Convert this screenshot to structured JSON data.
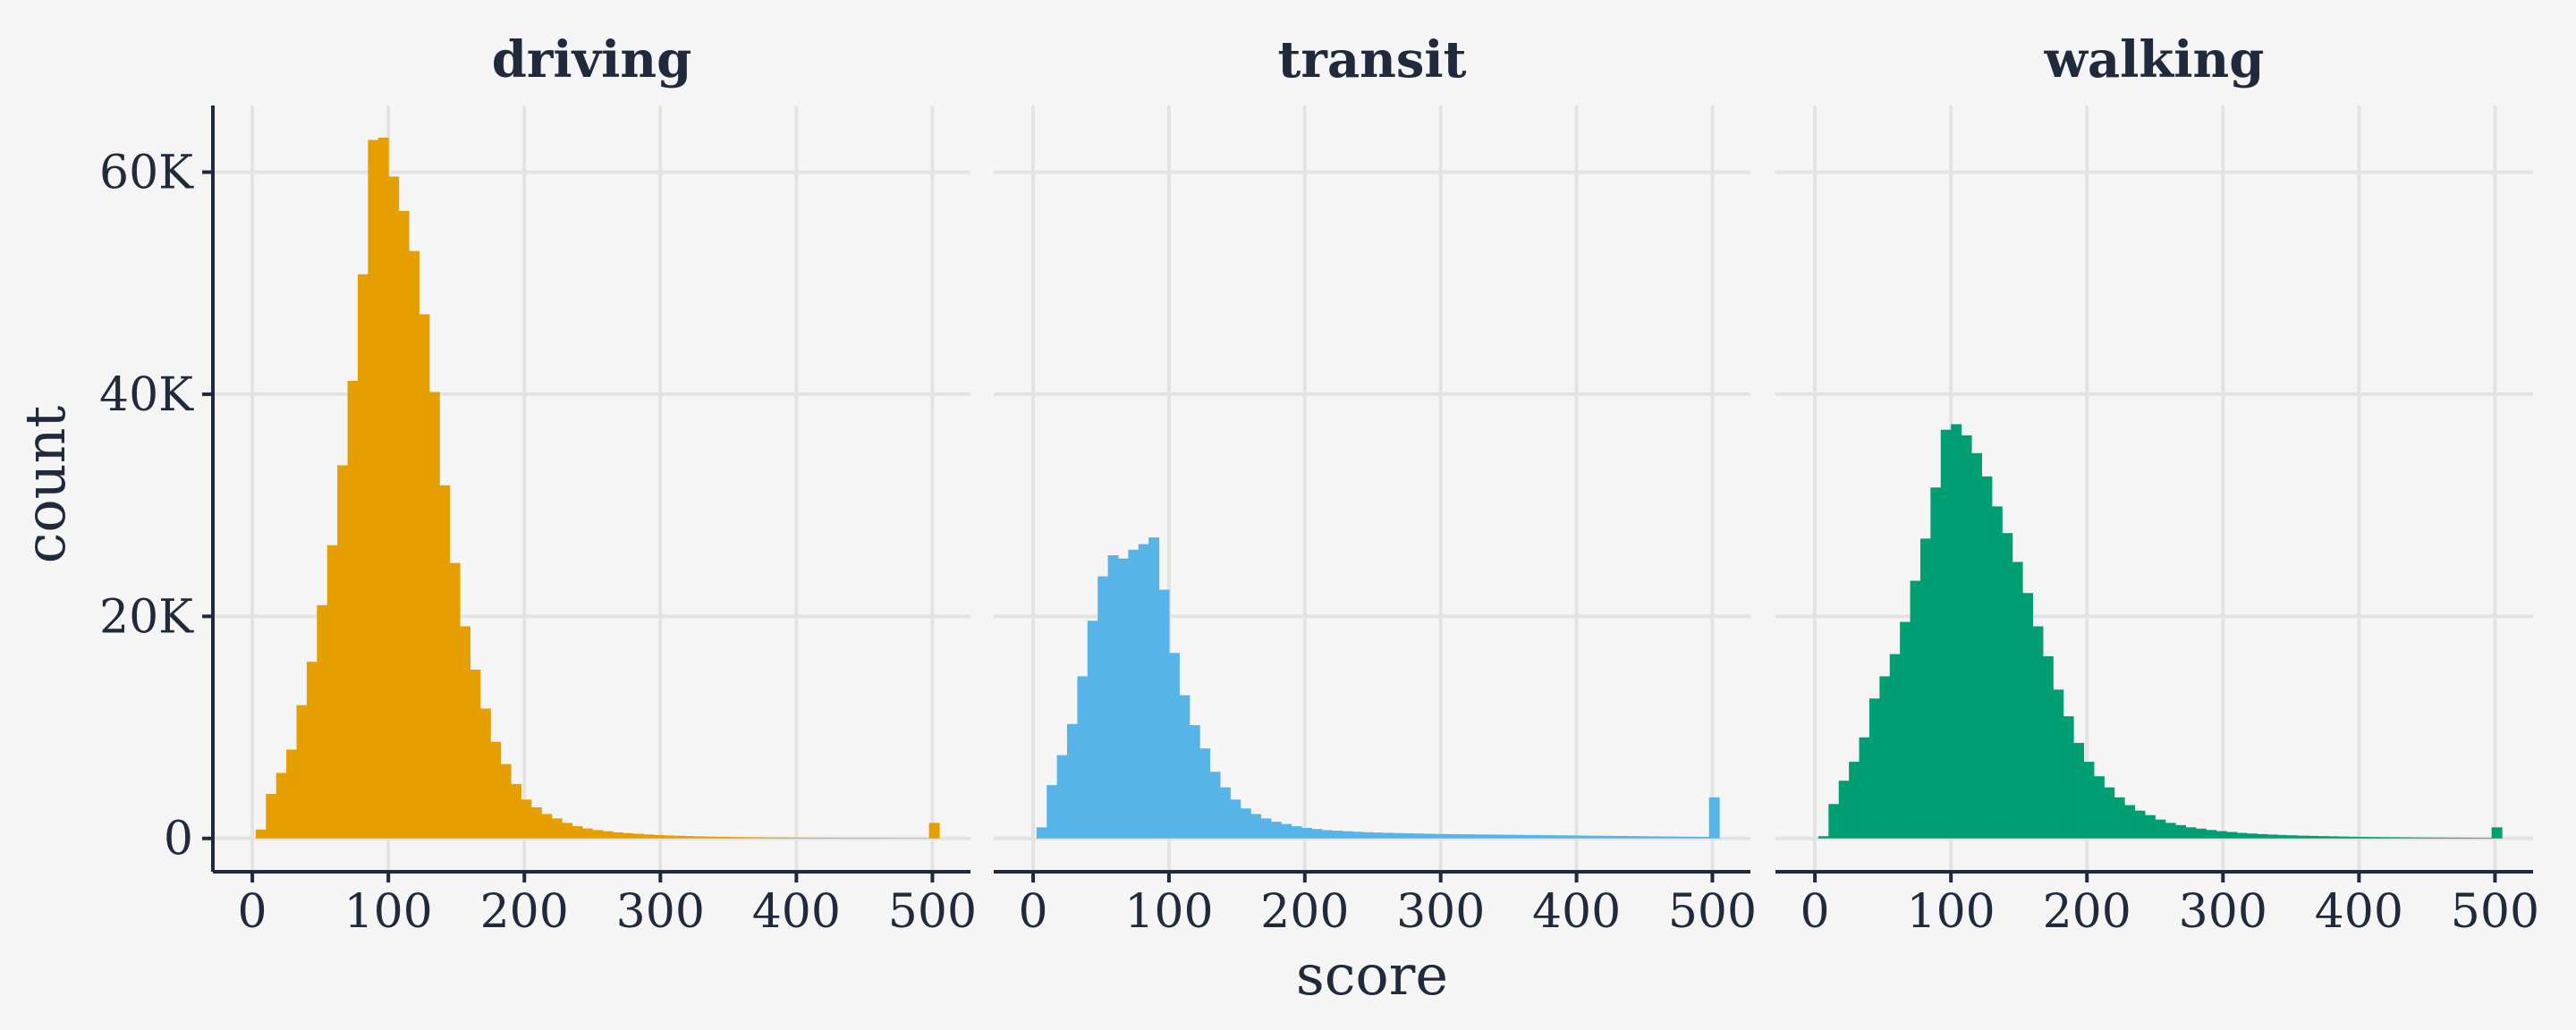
{
  "chart_data": {
    "type": "bar",
    "subtype": "faceted-histogram",
    "xlabel": "score",
    "ylabel": "count",
    "xlim": [
      -29,
      528
    ],
    "ylim": [
      -3000,
      66000
    ],
    "x_ticks": [
      0,
      100,
      200,
      300,
      400,
      500
    ],
    "x_tick_labels": [
      "0",
      "100",
      "200",
      "300",
      "400",
      "500"
    ],
    "y_ticks": [
      0,
      20000,
      40000,
      60000
    ],
    "y_tick_labels": [
      "0",
      "20K",
      "40K",
      "60K"
    ],
    "grid": true,
    "legend": "none",
    "bin_width": 7.5,
    "facets": [
      {
        "name": "driving",
        "color": "#E69F00",
        "bin_starts": [
          2.5,
          10,
          17.5,
          25,
          32.5,
          40,
          47.5,
          55,
          62.5,
          70,
          77.5,
          85,
          92.5,
          100,
          107.5,
          115,
          122.5,
          130,
          137.5,
          145,
          152.5,
          160,
          167.5,
          175,
          182.5,
          190,
          197.5,
          205,
          212.5,
          220,
          227.5,
          235,
          242.5,
          250,
          257.5,
          265,
          272.5,
          280,
          287.5,
          295,
          302.5,
          310,
          317.5,
          325,
          332.5,
          340,
          347.5,
          355,
          362.5,
          370,
          377.5,
          385,
          392.5,
          400,
          407.5,
          415,
          422.5,
          430,
          437.5,
          445,
          452.5,
          460,
          467.5,
          475,
          482.5,
          490,
          497.5
        ],
        "counts": [
          800,
          4000,
          5900,
          8000,
          12000,
          15900,
          21000,
          26400,
          33600,
          41200,
          50800,
          62900,
          63100,
          59600,
          56500,
          52900,
          47200,
          40200,
          31800,
          24800,
          19100,
          15200,
          11700,
          8700,
          6700,
          4900,
          3500,
          2800,
          2200,
          1800,
          1400,
          1100,
          900,
          750,
          650,
          550,
          480,
          420,
          360,
          310,
          270,
          240,
          210,
          190,
          170,
          150,
          135,
          120,
          110,
          100,
          90,
          85,
          80,
          75,
          70,
          65,
          60,
          55,
          50,
          50,
          45,
          45,
          40,
          40,
          40,
          40,
          1400
        ]
      },
      {
        "name": "transit",
        "color": "#56B4E9",
        "bin_starts": [
          2.5,
          10,
          17.5,
          25,
          32.5,
          40,
          47.5,
          55,
          62.5,
          70,
          77.5,
          85,
          92.5,
          100,
          107.5,
          115,
          122.5,
          130,
          137.5,
          145,
          152.5,
          160,
          167.5,
          175,
          182.5,
          190,
          197.5,
          205,
          212.5,
          220,
          227.5,
          235,
          242.5,
          250,
          257.5,
          265,
          272.5,
          280,
          287.5,
          295,
          302.5,
          310,
          317.5,
          325,
          332.5,
          340,
          347.5,
          355,
          362.5,
          370,
          377.5,
          385,
          392.5,
          400,
          407.5,
          415,
          422.5,
          430,
          437.5,
          445,
          452.5,
          460,
          467.5,
          475,
          482.5,
          490,
          497.5
        ],
        "counts": [
          1000,
          4800,
          7500,
          10300,
          14600,
          19600,
          23600,
          25500,
          25200,
          26000,
          26500,
          27100,
          22400,
          16700,
          12900,
          10200,
          8100,
          6000,
          4600,
          3500,
          2700,
          2200,
          1800,
          1500,
          1300,
          1100,
          950,
          850,
          750,
          700,
          650,
          600,
          560,
          530,
          500,
          480,
          460,
          440,
          420,
          400,
          390,
          380,
          370,
          360,
          350,
          340,
          330,
          320,
          310,
          300,
          290,
          280,
          270,
          260,
          250,
          240,
          230,
          220,
          210,
          200,
          190,
          180,
          170,
          160,
          150,
          140,
          3700
        ]
      },
      {
        "name": "walking",
        "color": "#009E73",
        "bin_starts": [
          2.5,
          10,
          17.5,
          25,
          32.5,
          40,
          47.5,
          55,
          62.5,
          70,
          77.5,
          85,
          92.5,
          100,
          107.5,
          115,
          122.5,
          130,
          137.5,
          145,
          152.5,
          160,
          167.5,
          175,
          182.5,
          190,
          197.5,
          205,
          212.5,
          220,
          227.5,
          235,
          242.5,
          250,
          257.5,
          265,
          272.5,
          280,
          287.5,
          295,
          302.5,
          310,
          317.5,
          325,
          332.5,
          340,
          347.5,
          355,
          362.5,
          370,
          377.5,
          385,
          392.5,
          400,
          407.5,
          415,
          422.5,
          430,
          437.5,
          445,
          452.5,
          460,
          467.5,
          475,
          482.5,
          490,
          497.5
        ],
        "counts": [
          200,
          3100,
          5200,
          6900,
          9100,
          12600,
          14600,
          16600,
          19500,
          23200,
          27000,
          31600,
          36800,
          37300,
          36300,
          34700,
          32600,
          29900,
          27500,
          24900,
          22100,
          19100,
          16400,
          13400,
          11000,
          8600,
          6900,
          5600,
          4600,
          3700,
          3000,
          2500,
          2100,
          1700,
          1400,
          1200,
          1000,
          880,
          760,
          660,
          580,
          500,
          440,
          390,
          350,
          310,
          280,
          250,
          230,
          210,
          190,
          170,
          150,
          140,
          130,
          120,
          110,
          100,
          90,
          85,
          80,
          75,
          70,
          65,
          60,
          55,
          1000
        ]
      }
    ]
  }
}
